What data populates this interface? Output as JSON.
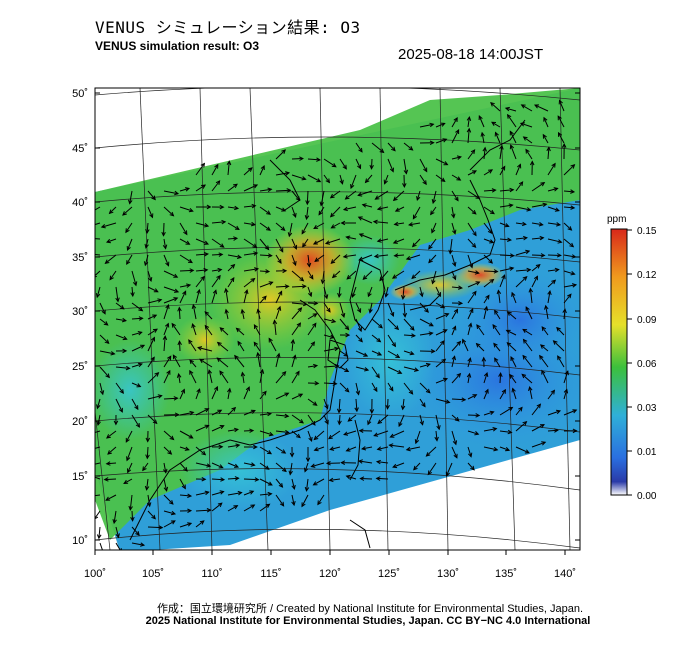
{
  "header": {
    "title_ja": "VENUS シミュレーション結果: O3",
    "title_en": "VENUS simulation result: O3",
    "timestamp": "2025-08-18 14:00JST"
  },
  "axes": {
    "lat_labels": [
      "50˚",
      "45˚",
      "40˚",
      "35˚",
      "30˚",
      "25˚",
      "20˚",
      "15˚",
      "10˚"
    ],
    "lon_labels": [
      "100˚",
      "105˚",
      "110˚",
      "115˚",
      "120˚",
      "125˚",
      "130˚",
      "135˚",
      "140˚"
    ]
  },
  "colorbar": {
    "unit": "ppm",
    "ticks": [
      "0.15",
      "0.12",
      "0.09",
      "0.06",
      "0.03",
      "0.01",
      "0.00"
    ],
    "colors": [
      "#e03a1a",
      "#f29a1e",
      "#e7e22a",
      "#3dc23d",
      "#2fb3d6",
      "#2a7be0",
      "#1a3aa8",
      "#ffffff"
    ]
  },
  "footer": {
    "credit_line1": "作成：国立環境研究所 / Created by National Institute for Environmental Studies, Japan.",
    "credit_line2": "2025 National Institute for Environmental Studies, Japan. CC BY−NC 4.0 International"
  }
}
